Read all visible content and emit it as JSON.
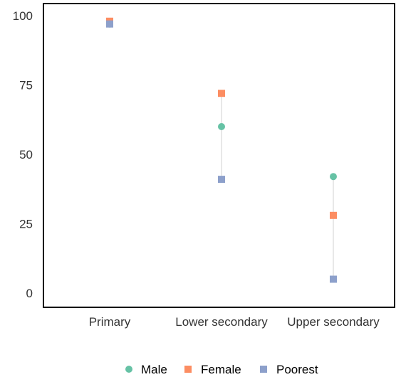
{
  "chart_data": {
    "type": "scatter",
    "title": "",
    "xlabel": "",
    "ylabel": "",
    "categories": [
      "Primary",
      "Lower secondary",
      "Upper secondary"
    ],
    "ylim": [
      0,
      100
    ],
    "yticks": [
      0,
      25,
      50,
      75,
      100
    ],
    "grid": false,
    "legend_placement": "bottom-center",
    "series": [
      {
        "name": "Male",
        "marker": "circle",
        "color": "#66c2a5",
        "values": [
          97,
          60,
          42
        ]
      },
      {
        "name": "Female",
        "marker": "square",
        "color": "#fc8d62",
        "values": [
          98,
          72,
          28
        ]
      },
      {
        "name": "Poorest",
        "marker": "square",
        "color": "#8da0cb",
        "values": [
          97,
          41,
          5
        ]
      }
    ],
    "connector_color": "#d9d9d9"
  }
}
